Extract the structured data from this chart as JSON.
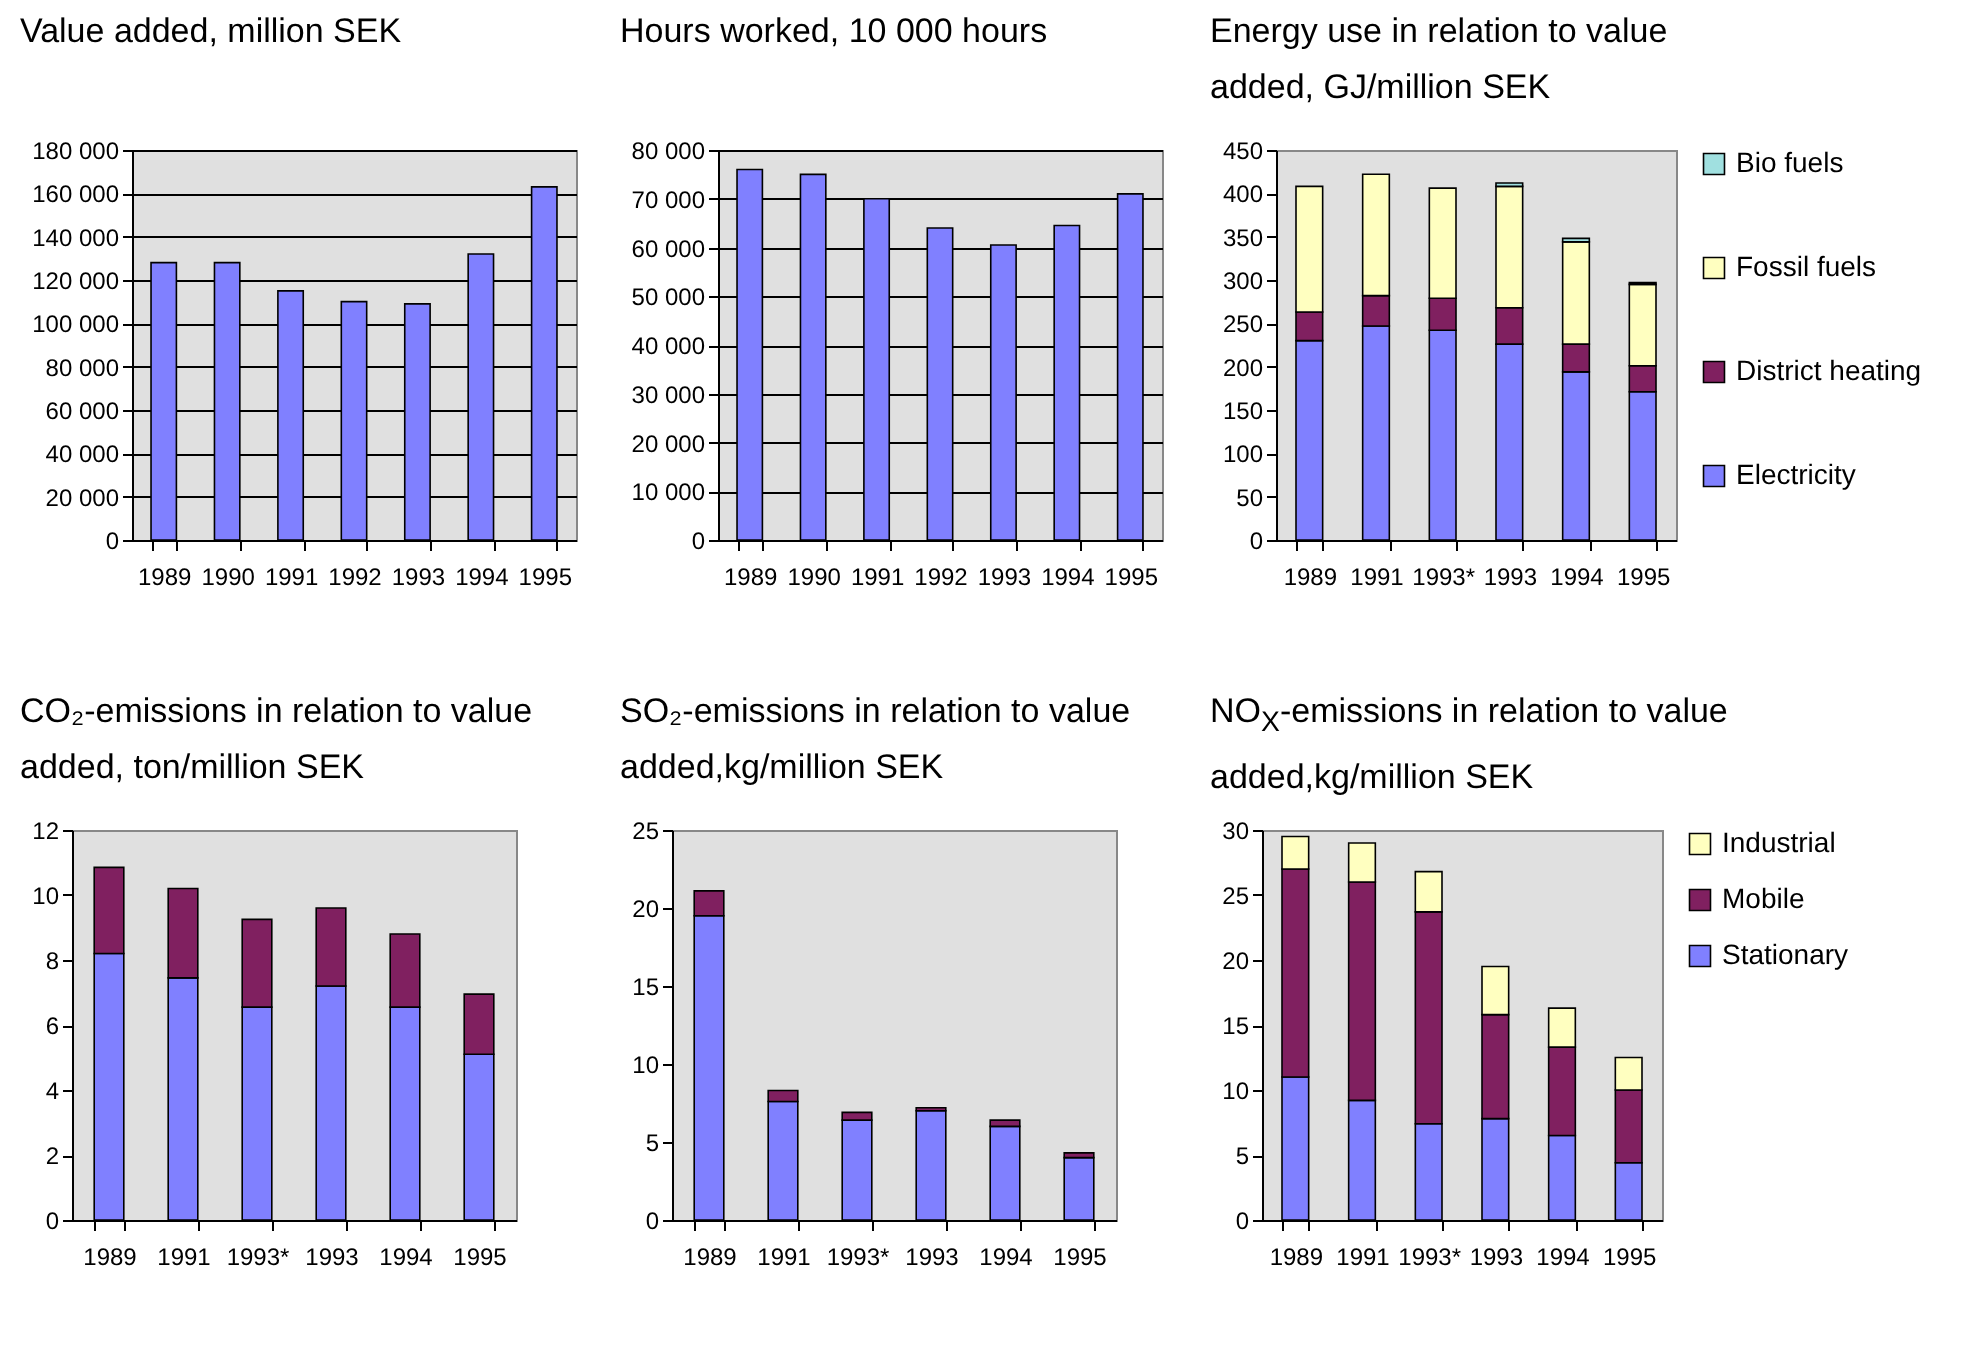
{
  "chart_data": [
    {
      "type": "bar",
      "title": "Value added, million SEK",
      "categories": [
        "1989",
        "1990",
        "1991",
        "1992",
        "1993",
        "1994",
        "1995"
      ],
      "values": [
        128000,
        128000,
        115000,
        110000,
        109000,
        132000,
        163000
      ],
      "color": "#8080ff",
      "ylim": [
        0,
        180000
      ],
      "yticks": [
        0,
        {
          "value": 20000,
          "label": "20 000"
        },
        {
          "value": 40000,
          "label": "40 000"
        },
        {
          "value": 60000,
          "label": "60 000"
        },
        {
          "value": 80000,
          "label": "80 000"
        },
        {
          "value": 100000,
          "label": "100 000"
        },
        {
          "value": 120000,
          "label": "120 000"
        },
        {
          "value": 140000,
          "label": "140 000"
        },
        {
          "value": 160000,
          "label": "160 000"
        },
        {
          "value": 180000,
          "label": "180 000"
        }
      ],
      "grid": "y"
    },
    {
      "type": "bar",
      "title": "Hours worked, 10 000 hours",
      "categories": [
        "1989",
        "1990",
        "1991",
        "1992",
        "1993",
        "1994",
        "1995"
      ],
      "values": [
        76000,
        75000,
        70000,
        64000,
        60500,
        64500,
        71000
      ],
      "color": "#8080ff",
      "ylim": [
        0,
        80000
      ],
      "yticks": [
        0,
        {
          "value": 10000,
          "label": "10 000"
        },
        {
          "value": 20000,
          "label": "20 000"
        },
        {
          "value": 30000,
          "label": "30 000"
        },
        {
          "value": 40000,
          "label": "40 000"
        },
        {
          "value": 50000,
          "label": "50 000"
        },
        {
          "value": 60000,
          "label": "60 000"
        },
        {
          "value": 70000,
          "label": "70 000"
        },
        {
          "value": 80000,
          "label": "80 000"
        }
      ],
      "grid": "y"
    },
    {
      "type": "bar",
      "title": "Energy use in relation to value added, GJ/million SEK",
      "stacked": true,
      "categories": [
        "1989",
        "1991",
        "1993*",
        "1993",
        "1994",
        "1995"
      ],
      "series": [
        {
          "name": "Electricity",
          "color": "#8080ff",
          "values": [
            230,
            247,
            242,
            226,
            194,
            171
          ]
        },
        {
          "name": "District heating",
          "color": "#802060",
          "values": [
            33,
            35,
            37,
            42,
            32,
            30
          ]
        },
        {
          "name": "Fossil fuels",
          "color": "#ffffc0",
          "values": [
            145,
            140,
            127,
            140,
            118,
            94
          ]
        },
        {
          "name": "Bio fuels",
          "color": "#a0e0e0",
          "values": [
            null,
            null,
            null,
            4,
            4,
            2
          ]
        }
      ],
      "ylim": [
        0,
        450
      ],
      "yticks": [
        0,
        50,
        100,
        150,
        200,
        250,
        300,
        350,
        400,
        450
      ],
      "legend": "right"
    },
    {
      "type": "bar",
      "title": "CO₂-emissions in relation to value added, ton/million SEK",
      "stacked": true,
      "categories": [
        "1989",
        "1991",
        "1993*",
        "1993",
        "1994",
        "1995"
      ],
      "series": [
        {
          "color": "#8080ff",
          "values": [
            8.2,
            7.45,
            6.55,
            7.2,
            6.55,
            5.1
          ]
        },
        {
          "color": "#802060",
          "values": [
            2.65,
            2.75,
            2.7,
            2.4,
            2.25,
            1.85
          ]
        }
      ],
      "ylim": [
        0,
        12
      ],
      "yticks": [
        0,
        2,
        4,
        6,
        8,
        10,
        12
      ]
    },
    {
      "type": "bar",
      "title": "SO₂-emissions in relation to value added,kg/million SEK",
      "stacked": true,
      "categories": [
        "1989",
        "1991",
        "1993*",
        "1993",
        "1994",
        "1995"
      ],
      "series": [
        {
          "color": "#8080ff",
          "values": [
            19.5,
            7.6,
            6.4,
            7.0,
            6.0,
            4.0
          ]
        },
        {
          "color": "#802060",
          "values": [
            1.6,
            0.7,
            0.5,
            0.2,
            0.4,
            0.3
          ]
        }
      ],
      "ylim": [
        0,
        25
      ],
      "yticks": [
        0,
        5,
        10,
        15,
        20,
        25
      ]
    },
    {
      "type": "bar",
      "title": "NO$_{X}$-emissions in relation to value added,kg/million SEK",
      "stacked": true,
      "categories": [
        "1989",
        "1991",
        "1993*",
        "1993",
        "1994",
        "1995"
      ],
      "series": [
        {
          "name": "Stationary",
          "color": "#8080ff",
          "values": [
            11,
            9.2,
            7.4,
            7.8,
            6.5,
            4.4
          ]
        },
        {
          "name": "Mobile",
          "color": "#802060",
          "values": [
            16,
            16.8,
            16.3,
            8,
            6.8,
            5.6
          ]
        },
        {
          "name": "Industrial",
          "color": "#ffffc0",
          "values": [
            2.5,
            3,
            3.1,
            3.7,
            3,
            2.5
          ]
        }
      ],
      "ylim": [
        0,
        30
      ],
      "yticks": [
        0,
        5,
        10,
        15,
        20,
        25,
        30
      ],
      "legend": "right"
    }
  ]
}
